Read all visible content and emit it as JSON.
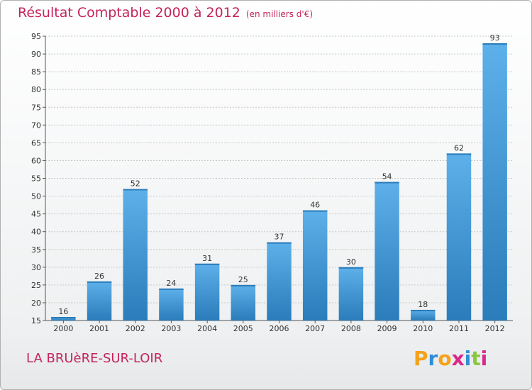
{
  "chart_data": {
    "type": "bar",
    "title": "Résultat Comptable 2000 à 2012",
    "subtitle": "(en milliers d'€)",
    "xlabel": "",
    "ylabel": "",
    "categories": [
      "2000",
      "2001",
      "2002",
      "2003",
      "2004",
      "2005",
      "2006",
      "2007",
      "2008",
      "2009",
      "2010",
      "2011",
      "2012"
    ],
    "values": [
      16,
      26,
      52,
      24,
      31,
      25,
      37,
      46,
      30,
      54,
      18,
      62,
      93
    ],
    "ylim": [
      15,
      95
    ],
    "yticks": [
      15,
      20,
      25,
      30,
      35,
      40,
      45,
      50,
      55,
      60,
      65,
      70,
      75,
      80,
      85,
      90,
      95
    ],
    "grid": true,
    "bar_color": "#3f97d8",
    "bar_color_dark": "#2a7cba",
    "bar_color_light": "#5eb0ea",
    "grid_color": "#c8c8c8"
  },
  "footer": {
    "commune": "LA BRUèRE-SUR-LOIR",
    "logo_letters": [
      "P",
      "r",
      "o",
      "x",
      "i",
      "t",
      "i"
    ],
    "logo_colors": [
      "#f5a21b",
      "#2f8fd6",
      "#f5a21b",
      "#d9288a",
      "#2f8fd6",
      "#8cc63f",
      "#d9288a"
    ]
  }
}
